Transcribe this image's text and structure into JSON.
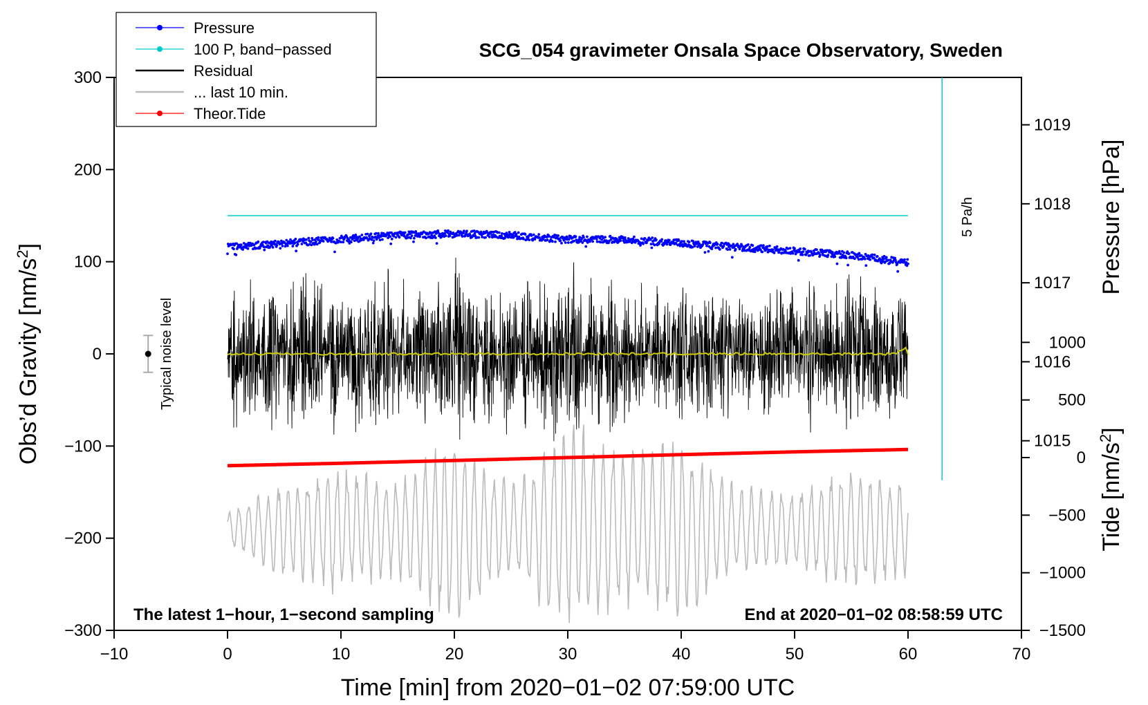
{
  "chart_data": {
    "type": "line",
    "title": "SCG_054 gravimeter Onsala Space Observatory, Sweden",
    "xlabel": "Time [min] from 2020−01−02 07:59:00 UTC",
    "ylabel_main": "Obs’d Gravity [nm/s",
    "ylabel_main_sup": "2",
    "ylabel_main_end": "]",
    "ylabel_pressure": "Pressure [hPa]",
    "ylabel_tide": "Tide [nm/s",
    "ylabel_tide_sup": "2",
    "ylabel_tide_end": "]",
    "xlim": [
      -10,
      70
    ],
    "ylim": [
      -300,
      300
    ],
    "pressure_lim": [
      1012.6,
      1019.6
    ],
    "tide_lim": [
      -1500,
      3300
    ],
    "x_ticks": [
      -10,
      0,
      10,
      20,
      30,
      40,
      50,
      60,
      70
    ],
    "x_tick_labels": [
      "−10",
      "0",
      "10",
      "20",
      "30",
      "40",
      "50",
      "60",
      "70"
    ],
    "y_ticks": [
      -300,
      -200,
      -100,
      0,
      100,
      200,
      300
    ],
    "y_tick_labels": [
      "−300",
      "−200",
      "−100",
      "0",
      "100",
      "200",
      "300"
    ],
    "pressure_ticks": [
      1015,
      1016,
      1017,
      1018,
      1019
    ],
    "pressure_tick_labels": [
      "1015",
      "1016",
      "1017",
      "1018",
      "1019"
    ],
    "tide_ticks": [
      -1500,
      -1000,
      -500,
      0,
      500,
      1000
    ],
    "tide_tick_labels": [
      "−1500",
      "−1000",
      "−500",
      "0",
      "500",
      "1000"
    ],
    "legend": [
      {
        "label": "Pressure",
        "color": "#0000ff",
        "marker": true
      },
      {
        "label": "100 P, band−passed",
        "color": "#00cccc",
        "marker": true
      },
      {
        "label": "Residual",
        "color": "#000000",
        "marker": false
      },
      {
        "label": "... last 10 min.",
        "color": "#bbbbbb",
        "marker": false
      },
      {
        "label": "Theor.Tide",
        "color": "#ff0000",
        "marker": true
      }
    ],
    "legend_position": "top-left",
    "annotations": {
      "bottom_left": "The latest 1−hour, 1−second sampling",
      "bottom_right": "End at 2020−01−02 08:58:59 UTC",
      "noise": "Typical noise level",
      "rate": "5 Pa/h"
    },
    "noise_bar": {
      "x": -7,
      "center": 0,
      "half_range": 20
    },
    "rate_line": {
      "x": 63,
      "pressure_from": 1014.5,
      "pressure_to": 1019.6
    },
    "x_range_data": [
      0,
      60
    ],
    "series": [
      {
        "name": "Pressure",
        "axis": "pressure",
        "color": "#0000ff",
        "x": [
          0,
          5,
          10,
          15,
          20,
          25,
          30,
          35,
          40,
          45,
          50,
          55,
          60
        ],
        "values": [
          1017.45,
          1017.5,
          1017.55,
          1017.6,
          1017.62,
          1017.6,
          1017.55,
          1017.55,
          1017.5,
          1017.45,
          1017.4,
          1017.35,
          1017.25
        ]
      },
      {
        "name": "100 P, band-passed",
        "axis": "gravity",
        "color": "#00cccc",
        "x": [
          0,
          60
        ],
        "values": [
          150,
          150
        ]
      },
      {
        "name": "Residual",
        "axis": "gravity",
        "color": "#000000",
        "envelope_x": [
          0,
          2.5,
          5,
          7.5,
          10,
          12.5,
          15,
          17.5,
          20,
          22.5,
          25,
          27.5,
          30,
          32.5,
          35,
          37.5,
          40,
          42.5,
          45,
          47.5,
          50,
          52.5,
          55,
          57.5,
          60
        ],
        "envelope_amp": [
          85,
          110,
          95,
          110,
          90,
          115,
          100,
          95,
          125,
          100,
          95,
          105,
          110,
          100,
          95,
          90,
          100,
          95,
          85,
          95,
          90,
          100,
          115,
          100,
          90
        ]
      },
      {
        "name": "Residual trend",
        "axis": "gravity",
        "color": "#cccc00",
        "x": [
          0,
          30,
          59,
          59.8,
          60
        ],
        "values": [
          0,
          0,
          0,
          8,
          0
        ]
      },
      {
        "name": "... last 10 min.",
        "axis": "gravity",
        "color": "#bbbbbb",
        "envelope_x": [
          0,
          5,
          10,
          15,
          20,
          25,
          30,
          35,
          40,
          45,
          50,
          55,
          60
        ],
        "envelope_amp": [
          20,
          55,
          75,
          55,
          115,
          50,
          125,
          90,
          105,
          50,
          45,
          70,
          55
        ],
        "center": -190
      },
      {
        "name": "Theor.Tide",
        "axis": "tide",
        "color": "#ff0000",
        "x": [
          0,
          10,
          20,
          30,
          40,
          50,
          60
        ],
        "values": [
          -70,
          -50,
          -25,
          0,
          25,
          50,
          70
        ]
      }
    ]
  }
}
